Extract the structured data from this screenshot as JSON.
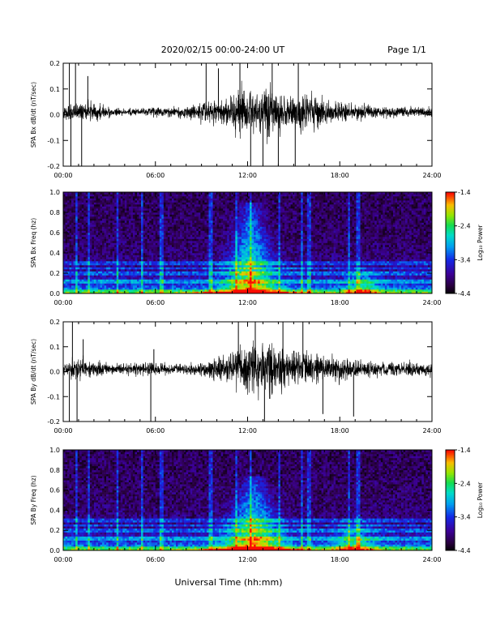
{
  "header": {
    "title": "2020/02/15  00:00-24:00 UT",
    "page": "Page 1/1"
  },
  "footer": {
    "xlabel": "Universal Time (hh:mm)"
  },
  "chart_data": [
    {
      "type": "line",
      "ylabel": "SPA Bx dB/dt (nT/sec)",
      "xlim": [
        0,
        24
      ],
      "ylim": [
        -0.2,
        0.2
      ],
      "xticks": [
        "00:00",
        "06:00",
        "12:00",
        "18:00",
        "24:00"
      ],
      "yticks": [
        "-0.2",
        "-0.1",
        "0.0",
        "0.1",
        "0.2"
      ],
      "ytick_values": [
        -0.2,
        -0.1,
        0.0,
        0.1,
        0.2
      ],
      "envelope": {
        "x": [
          0,
          1,
          2,
          3,
          4,
          5,
          6,
          7,
          8,
          9,
          10,
          11,
          12,
          13,
          14,
          15,
          16,
          17,
          18,
          19,
          20,
          21,
          22,
          23,
          24
        ],
        "amplitude": [
          0.04,
          0.05,
          0.05,
          0.03,
          0.02,
          0.02,
          0.03,
          0.03,
          0.04,
          0.05,
          0.07,
          0.1,
          0.14,
          0.15,
          0.13,
          0.11,
          0.1,
          0.08,
          0.06,
          0.05,
          0.04,
          0.03,
          0.03,
          0.03,
          0.03
        ]
      },
      "spikes": [
        {
          "x": 0.4,
          "y": 0.21
        },
        {
          "x": 0.5,
          "y": -0.21
        },
        {
          "x": 0.8,
          "y": 0.21
        },
        {
          "x": 1.2,
          "y": -0.2
        },
        {
          "x": 1.6,
          "y": 0.15
        },
        {
          "x": 9.3,
          "y": 0.2
        },
        {
          "x": 10.1,
          "y": 0.18
        },
        {
          "x": 11.5,
          "y": 0.21
        },
        {
          "x": 12.2,
          "y": -0.21
        },
        {
          "x": 13.0,
          "y": -0.21
        },
        {
          "x": 13.6,
          "y": 0.21
        },
        {
          "x": 14.0,
          "y": -0.21
        },
        {
          "x": 15.1,
          "y": -0.2
        },
        {
          "x": 15.3,
          "y": 0.21
        }
      ]
    },
    {
      "type": "heatmap",
      "ylabel": "SPA Bx Freq (hz)",
      "colorbar_label": "Log₁₀ Power",
      "xlim": [
        0,
        24
      ],
      "ylim": [
        0,
        1.0
      ],
      "xticks": [
        "00:00",
        "06:00",
        "12:00",
        "18:00",
        "24:00"
      ],
      "yticks": [
        "0.0",
        "0.2",
        "0.4",
        "0.6",
        "0.8",
        "1.0"
      ],
      "ytick_values": [
        0.0,
        0.2,
        0.4,
        0.6,
        0.8,
        1.0
      ],
      "colorbar_ticks": [
        "-1.4",
        "-2.4",
        "-3.4",
        "-4.4"
      ],
      "colorbar_values": [
        -1.4,
        -2.4,
        -3.4,
        -4.4
      ],
      "crange": [
        -4.4,
        -1.4
      ],
      "bands_hz": [
        0.02,
        0.12,
        0.2,
        0.25,
        0.3
      ],
      "event": {
        "center_hours": 12.2,
        "width_hours": 3.0,
        "peak_freq_hz": 0.9,
        "peak_level": -2.0
      },
      "secondary_event": {
        "center_hours": 19.5,
        "width_hours": 1.8,
        "peak_freq_hz": 0.25,
        "peak_level": -2.9
      },
      "vertical_lines_hours": [
        0.9,
        1.7,
        3.5,
        5.1,
        6.4,
        9.6,
        11.3,
        12.2,
        14.1,
        15.5,
        16.0,
        18.6,
        19.2
      ]
    },
    {
      "type": "line",
      "ylabel": "SPA By dB/dt (nT/sec)",
      "xlim": [
        0,
        24
      ],
      "ylim": [
        -0.2,
        0.2
      ],
      "xticks": [
        "00:00",
        "06:00",
        "12:00",
        "18:00",
        "24:00"
      ],
      "yticks": [
        "-0.2",
        "-0.1",
        "0.0",
        "0.1",
        "0.2"
      ],
      "ytick_values": [
        -0.2,
        -0.1,
        0.0,
        0.1,
        0.2
      ],
      "envelope": {
        "x": [
          0,
          1,
          2,
          3,
          4,
          5,
          6,
          7,
          8,
          9,
          10,
          11,
          12,
          13,
          14,
          15,
          16,
          17,
          18,
          19,
          20,
          21,
          22,
          23,
          24
        ],
        "amplitude": [
          0.04,
          0.07,
          0.05,
          0.03,
          0.03,
          0.04,
          0.04,
          0.03,
          0.03,
          0.04,
          0.07,
          0.1,
          0.15,
          0.16,
          0.14,
          0.12,
          0.1,
          0.08,
          0.07,
          0.06,
          0.05,
          0.04,
          0.04,
          0.04,
          0.04
        ]
      },
      "spikes": [
        {
          "x": 0.4,
          "y": -0.21
        },
        {
          "x": 0.6,
          "y": 0.2
        },
        {
          "x": 0.9,
          "y": -0.21
        },
        {
          "x": 1.3,
          "y": 0.13
        },
        {
          "x": 5.7,
          "y": -0.2
        },
        {
          "x": 5.9,
          "y": 0.09
        },
        {
          "x": 11.4,
          "y": 0.21
        },
        {
          "x": 12.5,
          "y": 0.21
        },
        {
          "x": 13.1,
          "y": -0.21
        },
        {
          "x": 14.3,
          "y": 0.21
        },
        {
          "x": 15.6,
          "y": 0.21
        },
        {
          "x": 16.9,
          "y": -0.17
        },
        {
          "x": 18.9,
          "y": -0.18
        }
      ]
    },
    {
      "type": "heatmap",
      "ylabel": "SPA By Freq (hz)",
      "colorbar_label": "Log₁₀ Power",
      "xlim": [
        0,
        24
      ],
      "ylim": [
        0,
        1.0
      ],
      "xticks": [
        "00:00",
        "06:00",
        "12:00",
        "18:00",
        "24:00"
      ],
      "yticks": [
        "0.0",
        "0.2",
        "0.4",
        "0.6",
        "0.8",
        "1.0"
      ],
      "ytick_values": [
        0.0,
        0.2,
        0.4,
        0.6,
        0.8,
        1.0
      ],
      "colorbar_ticks": [
        "-1.4",
        "-2.4",
        "-3.4",
        "-4.4"
      ],
      "colorbar_values": [
        -1.4,
        -2.4,
        -3.4,
        -4.4
      ],
      "crange": [
        -4.4,
        -1.4
      ],
      "bands_hz": [
        0.02,
        0.12,
        0.2,
        0.25,
        0.3
      ],
      "event": {
        "center_hours": 12.4,
        "width_hours": 3.3,
        "peak_freq_hz": 0.75,
        "peak_level": -2.0
      },
      "secondary_event": {
        "center_hours": 19.0,
        "width_hours": 2.2,
        "peak_freq_hz": 0.3,
        "peak_level": -2.8
      },
      "vertical_lines_hours": [
        0.9,
        1.7,
        3.5,
        5.1,
        6.4,
        9.6,
        11.3,
        12.2,
        14.1,
        15.5,
        16.0,
        18.6,
        19.2
      ]
    }
  ]
}
